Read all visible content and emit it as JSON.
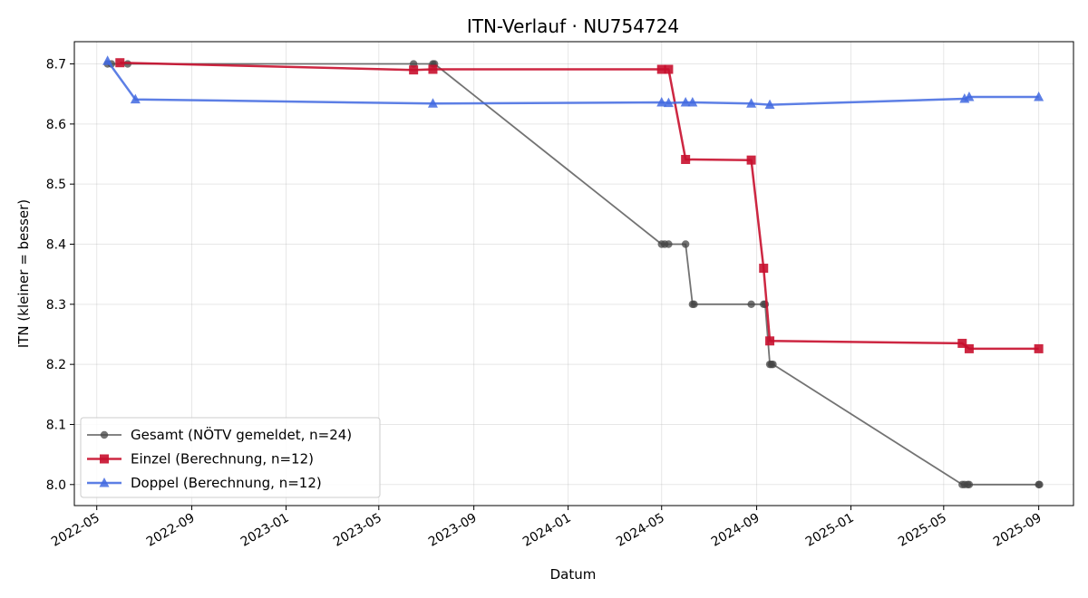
{
  "chart_data": {
    "type": "line",
    "title": "ITN-Verlauf · NU754724",
    "xlabel": "Datum",
    "ylabel": "ITN  (kleiner = besser)",
    "x_type": "date",
    "xlim": [
      "2022-04-02",
      "2025-10-16"
    ],
    "ylim": [
      7.965,
      8.737
    ],
    "x_ticks": [
      "2022-05",
      "2022-09",
      "2023-01",
      "2023-05",
      "2023-09",
      "2024-01",
      "2024-05",
      "2024-09",
      "2025-01",
      "2025-05",
      "2025-09"
    ],
    "y_ticks": [
      "8.0",
      "8.1",
      "8.2",
      "8.3",
      "8.4",
      "8.5",
      "8.6",
      "8.7"
    ],
    "grid": true,
    "legend_position": "lower-left",
    "series": [
      {
        "name": "Gesamt (NÖTV gemeldet, n=24)",
        "color": "#444444",
        "marker": "circle",
        "points": [
          [
            "2022-05-15",
            8.7
          ],
          [
            "2022-05-20",
            8.7
          ],
          [
            "2022-06-10",
            8.7
          ],
          [
            "2023-06-15",
            8.7
          ],
          [
            "2023-07-10",
            8.7
          ],
          [
            "2023-07-12",
            8.7
          ],
          [
            "2024-05-01",
            8.4
          ],
          [
            "2024-05-05",
            8.4
          ],
          [
            "2024-05-10",
            8.4
          ],
          [
            "2024-06-01",
            8.4
          ],
          [
            "2024-06-10",
            8.3
          ],
          [
            "2024-06-12",
            8.3
          ],
          [
            "2024-08-25",
            8.3
          ],
          [
            "2024-09-10",
            8.3
          ],
          [
            "2024-09-12",
            8.3
          ],
          [
            "2024-09-18",
            8.2
          ],
          [
            "2024-09-20",
            8.2
          ],
          [
            "2024-09-22",
            8.2
          ],
          [
            "2025-05-25",
            8.0
          ],
          [
            "2025-05-28",
            8.0
          ],
          [
            "2025-06-01",
            8.0
          ],
          [
            "2025-06-03",
            8.0
          ],
          [
            "2025-09-01",
            8.0
          ],
          [
            "2025-09-02",
            8.0
          ]
        ]
      },
      {
        "name": "Einzel (Berechnung, n=12)",
        "color": "#c8102e",
        "marker": "square",
        "points": [
          [
            "2022-05-31",
            8.702
          ],
          [
            "2023-06-15",
            8.69
          ],
          [
            "2023-07-10",
            8.691
          ],
          [
            "2024-05-01",
            8.691
          ],
          [
            "2024-05-10",
            8.691
          ],
          [
            "2024-06-01",
            8.541
          ],
          [
            "2024-08-25",
            8.54
          ],
          [
            "2024-09-10",
            8.36
          ],
          [
            "2024-09-18",
            8.239
          ],
          [
            "2025-05-25",
            8.235
          ],
          [
            "2025-06-03",
            8.226
          ],
          [
            "2025-09-01",
            8.226
          ]
        ]
      },
      {
        "name": "Doppel (Berechnung, n=12)",
        "color": "#4169e1",
        "marker": "triangle",
        "points": [
          [
            "2022-05-15",
            8.705
          ],
          [
            "2022-06-20",
            8.641
          ],
          [
            "2023-07-10",
            8.634
          ],
          [
            "2024-05-01",
            8.636
          ],
          [
            "2024-05-10",
            8.635
          ],
          [
            "2024-06-01",
            8.636
          ],
          [
            "2024-06-10",
            8.636
          ],
          [
            "2024-08-25",
            8.634
          ],
          [
            "2024-09-18",
            8.632
          ],
          [
            "2025-05-28",
            8.642
          ],
          [
            "2025-06-03",
            8.645
          ],
          [
            "2025-09-01",
            8.645
          ]
        ]
      }
    ]
  }
}
